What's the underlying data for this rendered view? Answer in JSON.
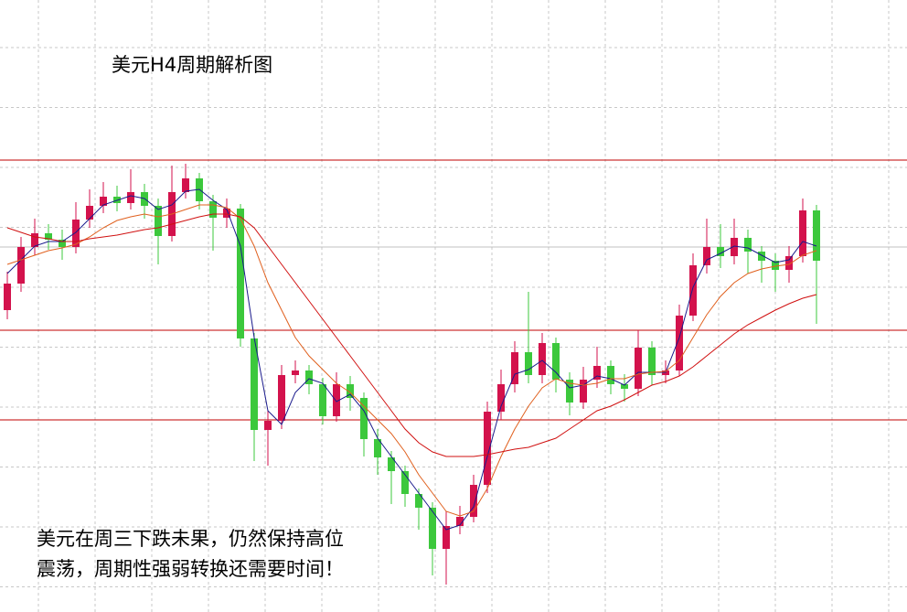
{
  "chart_data": {
    "type": "candlestick",
    "title": "美元H4周期解析图",
    "annotation": [
      "美元在周三下跌未果，仍然保持高位",
      "震荡，周期性强弱转换还需要时间！"
    ],
    "ylim": [
      0,
      669
    ],
    "grid": true,
    "up_color": "#d3124c",
    "down_color": "#3cc83c",
    "open": [
      330,
      359,
      399,
      414,
      407,
      399,
      429,
      444,
      454,
      447,
      459,
      444,
      411,
      459,
      474,
      449,
      431,
      441,
      299,
      199,
      209,
      259,
      264,
      249,
      214,
      249,
      234,
      189,
      169,
      154,
      129,
      114,
      69,
      94,
      104,
      139,
      219,
      249,
      284,
      259,
      294,
      254,
      229,
      254,
      269,
      249,
      244,
      289,
      259,
      264,
      324,
      379,
      399,
      389,
      409,
      394,
      384,
      374,
      389,
      439
    ],
    "high": [
      372,
      410,
      430,
      424,
      418,
      448,
      462,
      470,
      466,
      484,
      468,
      452,
      488,
      490,
      480,
      456,
      452,
      446,
      305,
      220,
      270,
      275,
      270,
      256,
      262,
      258,
      240,
      200,
      176,
      160,
      135,
      120,
      110,
      116,
      150,
      230,
      265,
      296,
      350,
      305,
      300,
      262,
      268,
      290,
      275,
      260,
      308,
      296,
      275,
      336,
      392,
      430,
      424,
      430,
      418,
      400,
      392,
      400,
      452,
      445
    ],
    "low": [
      320,
      350,
      390,
      396,
      385,
      392,
      420,
      436,
      438,
      440,
      430,
      380,
      405,
      452,
      440,
      395,
      420,
      290,
      165,
      160,
      200,
      250,
      238,
      205,
      208,
      220,
      170,
      150,
      118,
      115,
      90,
      40,
      30,
      85,
      98,
      130,
      210,
      240,
      250,
      250,
      240,
      215,
      222,
      245,
      238,
      230,
      236,
      248,
      250,
      258,
      318,
      370,
      376,
      380,
      370,
      360,
      350,
      360,
      382,
      315
    ],
    "close": [
      359,
      399,
      414,
      407,
      399,
      429,
      444,
      454,
      447,
      459,
      444,
      411,
      459,
      474,
      449,
      431,
      441,
      299,
      199,
      209,
      259,
      264,
      249,
      214,
      249,
      234,
      189,
      169,
      154,
      129,
      114,
      69,
      94,
      104,
      139,
      219,
      249,
      284,
      259,
      294,
      254,
      229,
      254,
      269,
      249,
      244,
      289,
      259,
      264,
      324,
      379,
      399,
      389,
      409,
      394,
      384,
      374,
      389,
      439,
      384
    ],
    "series": [
      {
        "color": "#1a1a8c",
        "values": [
          370,
          385,
          400,
          405,
          405,
          415,
          430,
          445,
          450,
          455,
          452,
          440,
          445,
          460,
          462,
          450,
          440,
          400,
          300,
          220,
          205,
          240,
          255,
          250,
          230,
          238,
          220,
          190,
          170,
          150,
          130,
          110,
          90,
          95,
          115,
          170,
          225,
          260,
          265,
          275,
          262,
          245,
          248,
          258,
          255,
          248,
          262,
          262,
          262,
          300,
          355,
          385,
          392,
          400,
          398,
          390,
          382,
          385,
          405,
          400
        ]
      },
      {
        "color": "#e0601e",
        "values": [
          380,
          385,
          390,
          395,
          398,
          402,
          410,
          420,
          428,
          432,
          435,
          432,
          435,
          440,
          445,
          445,
          442,
          430,
          400,
          360,
          330,
          300,
          280,
          265,
          250,
          240,
          225,
          210,
          195,
          175,
          150,
          130,
          110,
          105,
          110,
          135,
          170,
          200,
          225,
          245,
          255,
          250,
          248,
          250,
          255,
          255,
          260,
          262,
          263,
          275,
          300,
          325,
          345,
          360,
          370,
          375,
          378,
          380,
          390,
          395
        ]
      },
      {
        "color": "#d01010",
        "values": [
          420,
          415,
          410,
          408,
          405,
          405,
          408,
          410,
          412,
          415,
          418,
          420,
          424,
          428,
          432,
          435,
          435,
          432,
          420,
          400,
          380,
          360,
          340,
          320,
          300,
          280,
          260,
          240,
          220,
          200,
          185,
          175,
          170,
          170,
          170,
          172,
          175,
          178,
          180,
          185,
          190,
          200,
          210,
          220,
          225,
          232,
          240,
          248,
          252,
          258,
          268,
          280,
          292,
          304,
          314,
          322,
          330,
          337,
          343,
          347
        ]
      }
    ],
    "levels": [
      494,
      308,
      210
    ],
    "level_color": "#c00000",
    "price_line": 399
  }
}
